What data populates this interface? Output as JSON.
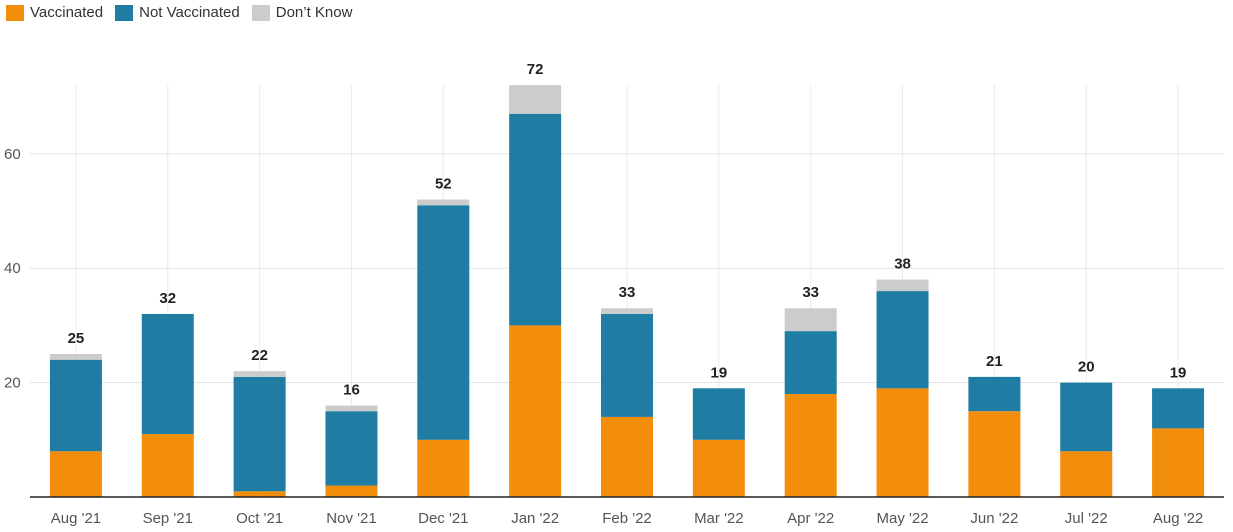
{
  "legend": [
    {
      "label": "Vaccinated",
      "color": "#F28E0B"
    },
    {
      "label": "Not Vaccinated",
      "color": "#1F7CA3"
    },
    {
      "label": "Don’t Know",
      "color": "#CCCCCC"
    }
  ],
  "chart_data": {
    "type": "bar",
    "stacked": true,
    "categories": [
      "Aug '21",
      "Sep '21",
      "Oct '21",
      "Nov '21",
      "Dec '21",
      "Jan '22",
      "Feb '22",
      "Mar '22",
      "Apr '22",
      "May '22",
      "Jun '22",
      "Jul '22",
      "Aug '22"
    ],
    "series": [
      {
        "name": "Vaccinated",
        "color": "#F28E0B",
        "values": [
          8,
          11,
          1,
          2,
          10,
          30,
          14,
          10,
          18,
          19,
          15,
          8,
          12
        ]
      },
      {
        "name": "Not Vaccinated",
        "color": "#1F7CA3",
        "values": [
          16,
          21,
          20,
          13,
          41,
          37,
          18,
          9,
          11,
          17,
          6,
          12,
          7
        ]
      },
      {
        "name": "Don’t Know",
        "color": "#CCCCCC",
        "values": [
          1,
          0,
          1,
          1,
          1,
          5,
          1,
          0,
          4,
          2,
          0,
          0,
          0
        ]
      }
    ],
    "totals": [
      "25",
      "32",
      "22",
      "16",
      "52",
      "72",
      "33",
      "19",
      "33",
      "38",
      "21",
      "20",
      "19"
    ],
    "y_ticks": [
      "20",
      "40",
      "60"
    ],
    "ylim": [
      0,
      72
    ],
    "grid": true,
    "legend_position": "top-left"
  }
}
